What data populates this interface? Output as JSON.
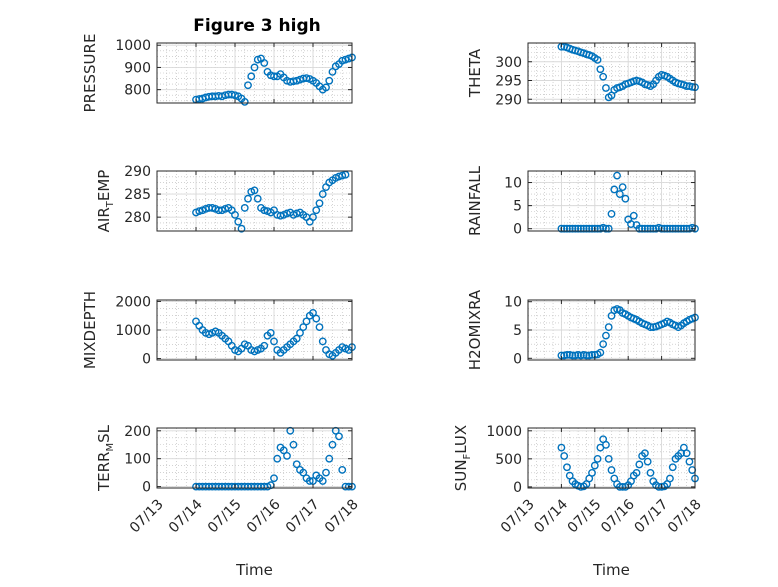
{
  "figure": {
    "title": "Figure 3 high",
    "colors": {
      "marker": "#0072BD",
      "grid": "#b8b8b8",
      "axes": "#262626",
      "plot_bg": "#ffffff"
    }
  },
  "chart_data": [
    {
      "type": "scatter",
      "name": "PRESSURE",
      "ylabel": "PRESSURE",
      "xlabel": "",
      "title": "Figure 3 high",
      "xlim": [
        "07/13",
        "07/18"
      ],
      "ylim": [
        740,
        1010
      ],
      "yticks": [
        800,
        900,
        1000
      ],
      "grid": true,
      "minor_grid": true,
      "x_start": "07/14 00:00",
      "x_step_hours": 2,
      "values": [
        755,
        758,
        760,
        765,
        768,
        770,
        770,
        772,
        770,
        775,
        778,
        778,
        775,
        770,
        760,
        745,
        820,
        860,
        900,
        935,
        940,
        920,
        880,
        865,
        860,
        860,
        870,
        855,
        840,
        835,
        838,
        840,
        845,
        850,
        852,
        848,
        840,
        830,
        815,
        800,
        810,
        840,
        880,
        905,
        915,
        930,
        935,
        940,
        945,
        950,
        955
      ]
    },
    {
      "type": "scatter",
      "name": "THETA",
      "ylabel": "THETA",
      "xlabel": "",
      "xlim": [
        "07/13",
        "07/18"
      ],
      "ylim": [
        289,
        305
      ],
      "yticks": [
        290,
        295,
        300
      ],
      "grid": true,
      "minor_grid": true,
      "x_start": "07/14 00:00",
      "x_step_hours": 2,
      "values": [
        304,
        304,
        303.8,
        303.5,
        303.2,
        303,
        302.8,
        302.5,
        302.3,
        302,
        301.8,
        301.5,
        301,
        300.5,
        298,
        296,
        293,
        290.5,
        291,
        292.5,
        293,
        293.2,
        293.5,
        294,
        294.2,
        294.5,
        294.8,
        295,
        294.8,
        294.5,
        294,
        293.8,
        293.5,
        294,
        295,
        296,
        296.5,
        296.3,
        296,
        295.5,
        295,
        294.5,
        294.2,
        294,
        293.8,
        293.5,
        293.5,
        293.3,
        293.2,
        293
      ]
    },
    {
      "type": "scatter",
      "name": "AIR_TEMP",
      "ylabel": "AIR_TEMP",
      "xlabel": "",
      "xlim": [
        "07/13",
        "07/18"
      ],
      "ylim": [
        277,
        290
      ],
      "yticks": [
        280,
        285,
        290
      ],
      "grid": true,
      "minor_grid": true,
      "x_start": "07/14 00:00",
      "x_step_hours": 2,
      "values": [
        281,
        281.3,
        281.5,
        281.8,
        282,
        282,
        281.8,
        281.5,
        281.5,
        281.8,
        282,
        281.5,
        280.5,
        279,
        277.5,
        282,
        284,
        285.5,
        285.8,
        284,
        282,
        281.5,
        281.3,
        281,
        281.5,
        280.5,
        280.3,
        280.5,
        280.8,
        281,
        280.5,
        280.8,
        281,
        280.5,
        280,
        279,
        280,
        281.5,
        283,
        285,
        286.5,
        287.5,
        288,
        288.5,
        288.8,
        289,
        289.2
      ]
    },
    {
      "type": "scatter",
      "name": "RAINFALL",
      "ylabel": "RAINFALL",
      "xlabel": "",
      "xlim": [
        "07/13",
        "07/18"
      ],
      "ylim": [
        -0.5,
        12.5
      ],
      "yticks": [
        0,
        5,
        10
      ],
      "grid": true,
      "minor_grid": true,
      "x_start": "07/14 00:00",
      "x_step_hours": 2,
      "values": [
        0,
        0,
        0,
        0,
        0,
        0,
        0,
        0,
        0,
        0,
        0,
        0,
        0,
        0,
        0,
        0.2,
        0,
        0,
        3.2,
        8.5,
        11.5,
        7.5,
        9,
        6.5,
        2,
        1,
        2.8,
        0.8,
        0,
        0,
        0,
        0,
        0,
        0,
        0,
        0.2,
        0,
        0,
        0,
        0,
        0,
        0,
        0,
        0,
        0,
        0,
        0,
        0.2,
        0,
        0,
        0,
        0.5
      ]
    },
    {
      "type": "scatter",
      "name": "MIXDEPTH",
      "ylabel": "MIXDEPTH",
      "xlabel": "",
      "xlim": [
        "07/13",
        "07/18"
      ],
      "ylim": [
        -50,
        2050
      ],
      "yticks": [
        0,
        1000,
        2000
      ],
      "grid": true,
      "minor_grid": true,
      "x_start": "07/14 00:00",
      "x_step_hours": 2,
      "values": [
        1300,
        1150,
        1000,
        900,
        850,
        900,
        950,
        900,
        800,
        700,
        600,
        450,
        300,
        250,
        350,
        500,
        450,
        300,
        250,
        300,
        350,
        450,
        800,
        900,
        600,
        300,
        200,
        300,
        400,
        500,
        600,
        700,
        900,
        1100,
        1300,
        1500,
        1600,
        1400,
        1100,
        600,
        300,
        150,
        100,
        200,
        300,
        400,
        350,
        300,
        400,
        450,
        350,
        380,
        400
      ]
    },
    {
      "type": "scatter",
      "name": "H2OMIXRA",
      "ylabel": "H2OMIXRA",
      "xlabel": "",
      "xlim": [
        "07/13",
        "07/18"
      ],
      "ylim": [
        -0.3,
        10.3
      ],
      "yticks": [
        0,
        5,
        10
      ],
      "grid": true,
      "minor_grid": true,
      "x_start": "07/14 00:00",
      "x_step_hours": 2,
      "values": [
        0.5,
        0.5,
        0.6,
        0.6,
        0.5,
        0.5,
        0.6,
        0.5,
        0.6,
        0.5,
        0.5,
        0.6,
        0.6,
        0.7,
        1,
        2.5,
        4,
        5.5,
        7.5,
        8.5,
        8.7,
        8.5,
        8,
        7.8,
        7.5,
        7.2,
        7,
        6.8,
        6.5,
        6.2,
        6,
        5.8,
        5.5,
        5.5,
        5.6,
        5.8,
        6,
        6.2,
        6.5,
        6.3,
        6,
        5.8,
        5.5,
        5.8,
        6.2,
        6.5,
        6.8,
        7,
        7.2,
        7.5,
        7.8,
        7.8
      ]
    },
    {
      "type": "scatter",
      "name": "TERR_MSL",
      "ylabel": "TERR_MSL",
      "xlabel": "Time",
      "xlim": [
        "07/13",
        "07/18"
      ],
      "ylim": [
        -5,
        210
      ],
      "yticks": [
        0,
        100,
        200
      ],
      "xticks": [
        "07/13",
        "07/14",
        "07/15",
        "07/16",
        "07/17",
        "07/18"
      ],
      "grid": true,
      "minor_grid": true,
      "x_start": "07/14 00:00",
      "x_step_hours": 2,
      "values": [
        0,
        0,
        0,
        0,
        0,
        0,
        0,
        0,
        0,
        0,
        0,
        0,
        0,
        0,
        0,
        0,
        0,
        0,
        0,
        0,
        0,
        0,
        0,
        5,
        30,
        100,
        140,
        130,
        110,
        200,
        150,
        80,
        60,
        50,
        30,
        20,
        20,
        40,
        30,
        20,
        50,
        100,
        150,
        200,
        180,
        60,
        0,
        0,
        0,
        5,
        10,
        20,
        30
      ]
    },
    {
      "type": "scatter",
      "name": "SUN_FLUX",
      "ylabel": "SUN_FLUX",
      "xlabel": "Time",
      "xlim": [
        "07/13",
        "07/18"
      ],
      "ylim": [
        -20,
        1050
      ],
      "yticks": [
        0,
        500,
        1000
      ],
      "xticks": [
        "07/13",
        "07/14",
        "07/15",
        "07/16",
        "07/17",
        "07/18"
      ],
      "grid": true,
      "minor_grid": true,
      "x_start": "07/14 00:00",
      "x_step_hours": 2,
      "values": [
        700,
        550,
        350,
        200,
        100,
        50,
        20,
        0,
        10,
        50,
        150,
        250,
        380,
        500,
        700,
        850,
        750,
        500,
        300,
        150,
        50,
        0,
        0,
        0,
        30,
        100,
        200,
        250,
        400,
        550,
        600,
        450,
        250,
        100,
        30,
        0,
        0,
        10,
        50,
        150,
        350,
        500,
        550,
        600,
        700,
        600,
        450,
        300,
        150,
        50,
        0,
        0,
        0,
        50,
        150,
        250,
        300,
        380,
        420,
        380,
        300,
        200,
        100
      ]
    }
  ]
}
